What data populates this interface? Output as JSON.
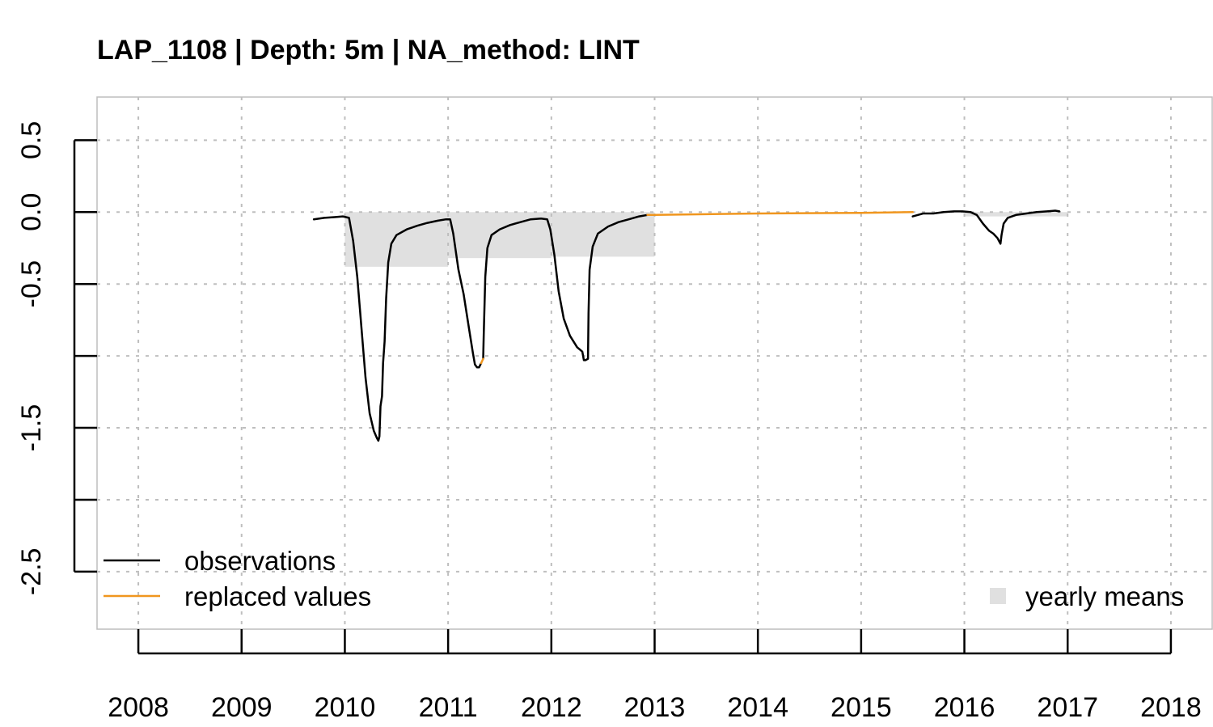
{
  "chart_data": {
    "type": "line",
    "title": "LAP_1108 | Depth: 5m | NA_method: LINT",
    "xlabel": "",
    "ylabel": "",
    "xlim": [
      2007.6,
      2018.4
    ],
    "ylim": [
      -2.9,
      0.8
    ],
    "x_ticks": [
      2008,
      2009,
      2010,
      2011,
      2012,
      2013,
      2014,
      2015,
      2016,
      2017,
      2018
    ],
    "x_tick_labels": [
      "2008",
      "2009",
      "2010",
      "2011",
      "2012",
      "2013",
      "2014",
      "2015",
      "2016",
      "2017",
      "2018"
    ],
    "y_ticks": [
      0.5,
      0.0,
      -0.5,
      -1.0,
      -1.5,
      -2.0,
      -2.5
    ],
    "y_tick_labels": [
      "0.5",
      "0.0",
      "-0.5",
      "",
      "-1.5",
      "",
      "-2.5"
    ],
    "grid": true,
    "legend": {
      "left_placement": "bottom-left",
      "right_placement": "bottom-right",
      "observations_label": "observations",
      "replaced_label": "replaced values",
      "yearly_means_label": "yearly means"
    },
    "colors": {
      "observations": "#000000",
      "replaced": "#F0961E",
      "yearly_means": "#E0E0E0",
      "grid": "#BEBEBE",
      "box": "#BEBEBE"
    },
    "yearly_means": [
      {
        "year": 2010,
        "value": -0.38
      },
      {
        "year": 2011,
        "value": -0.32
      },
      {
        "year": 2012,
        "value": -0.31
      },
      {
        "year": 2016,
        "value": -0.03
      }
    ],
    "series": [
      {
        "name": "observations",
        "segments": [
          [
            [
              2009.7,
              -0.05
            ],
            [
              2009.8,
              -0.04
            ],
            [
              2009.9,
              -0.035
            ],
            [
              2009.98,
              -0.03
            ],
            [
              2010.04,
              -0.04
            ],
            [
              2010.08,
              -0.2
            ],
            [
              2010.12,
              -0.45
            ],
            [
              2010.16,
              -0.8
            ],
            [
              2010.2,
              -1.15
            ],
            [
              2010.24,
              -1.4
            ],
            [
              2010.28,
              -1.52
            ],
            [
              2010.31,
              -1.57
            ],
            [
              2010.325,
              -1.59
            ],
            [
              2010.335,
              -1.56
            ],
            [
              2010.345,
              -1.35
            ],
            [
              2010.36,
              -1.28
            ],
            [
              2010.37,
              -1.05
            ],
            [
              2010.385,
              -0.9
            ],
            [
              2010.4,
              -0.6
            ],
            [
              2010.42,
              -0.35
            ],
            [
              2010.45,
              -0.22
            ],
            [
              2010.5,
              -0.16
            ],
            [
              2010.6,
              -0.12
            ],
            [
              2010.7,
              -0.095
            ],
            [
              2010.8,
              -0.075
            ],
            [
              2010.9,
              -0.06
            ],
            [
              2010.98,
              -0.05
            ],
            [
              2011.02,
              -0.05
            ],
            [
              2011.05,
              -0.15
            ],
            [
              2011.1,
              -0.4
            ],
            [
              2011.15,
              -0.57
            ],
            [
              2011.2,
              -0.8
            ],
            [
              2011.24,
              -0.98
            ],
            [
              2011.26,
              -1.06
            ],
            [
              2011.28,
              -1.08
            ],
            [
              2011.3,
              -1.08
            ],
            [
              2011.32,
              -1.05
            ]
          ],
          [
            [
              2011.34,
              -1.02
            ],
            [
              2011.345,
              -0.85
            ],
            [
              2011.36,
              -0.45
            ],
            [
              2011.38,
              -0.25
            ],
            [
              2011.42,
              -0.16
            ],
            [
              2011.5,
              -0.12
            ],
            [
              2011.6,
              -0.09
            ],
            [
              2011.7,
              -0.07
            ],
            [
              2011.8,
              -0.05
            ],
            [
              2011.9,
              -0.045
            ],
            [
              2011.96,
              -0.05
            ],
            [
              2011.99,
              -0.12
            ],
            [
              2012.03,
              -0.3
            ],
            [
              2012.07,
              -0.55
            ],
            [
              2012.12,
              -0.74
            ],
            [
              2012.18,
              -0.86
            ],
            [
              2012.25,
              -0.94
            ],
            [
              2012.3,
              -0.97
            ],
            [
              2012.315,
              -1.03
            ],
            [
              2012.33,
              -1.03
            ],
            [
              2012.355,
              -1.02
            ],
            [
              2012.36,
              -0.7
            ],
            [
              2012.37,
              -0.4
            ],
            [
              2012.4,
              -0.24
            ],
            [
              2012.45,
              -0.15
            ],
            [
              2012.55,
              -0.1
            ],
            [
              2012.65,
              -0.07
            ],
            [
              2012.75,
              -0.05
            ],
            [
              2012.85,
              -0.03
            ],
            [
              2012.93,
              -0.02
            ]
          ]
        ]
      },
      {
        "name": "observations",
        "segments": [
          [
            [
              2015.5,
              -0.03
            ],
            [
              2015.55,
              -0.02
            ],
            [
              2015.6,
              -0.01
            ],
            [
              2015.7,
              -0.01
            ],
            [
              2015.8,
              0.0
            ],
            [
              2015.9,
              0.005
            ],
            [
              2015.98,
              0.005
            ],
            [
              2016.06,
              0.0
            ],
            [
              2016.12,
              -0.02
            ],
            [
              2016.18,
              -0.08
            ],
            [
              2016.24,
              -0.13
            ],
            [
              2016.28,
              -0.15
            ],
            [
              2016.32,
              -0.18
            ],
            [
              2016.35,
              -0.22
            ],
            [
              2016.36,
              -0.16
            ],
            [
              2016.38,
              -0.08
            ],
            [
              2016.42,
              -0.04
            ],
            [
              2016.5,
              -0.02
            ],
            [
              2016.6,
              -0.01
            ],
            [
              2016.7,
              0.0
            ],
            [
              2016.8,
              0.005
            ],
            [
              2016.88,
              0.01
            ],
            [
              2016.92,
              0.005
            ]
          ]
        ]
      },
      {
        "name": "replaced values",
        "segments": [
          [
            [
              2011.32,
              -1.05
            ],
            [
              2011.34,
              -1.02
            ]
          ],
          [
            [
              2012.93,
              -0.02
            ],
            [
              2013.0,
              -0.02
            ],
            [
              2014.0,
              -0.01
            ],
            [
              2015.0,
              -0.005
            ],
            [
              2015.5,
              0.0
            ]
          ]
        ]
      }
    ]
  }
}
